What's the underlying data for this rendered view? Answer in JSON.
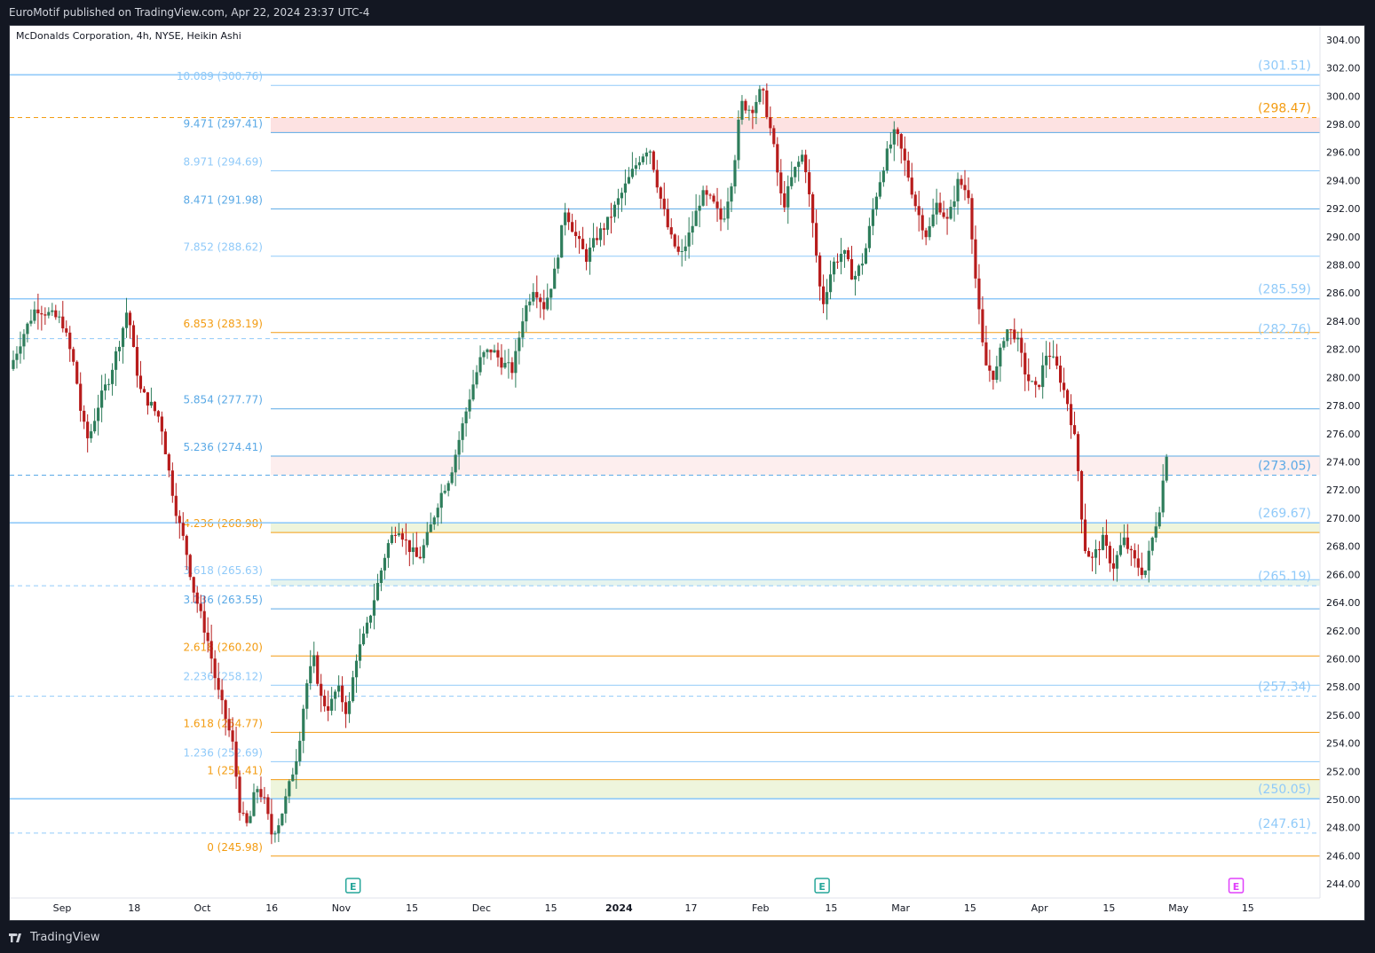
{
  "header": {
    "published_text": "EuroMotif published on TradingView.com, Apr 22, 2024 23:37 UTC-4"
  },
  "footer": {
    "brand": "TradingView",
    "logo_icon": "tradingview-logo-icon"
  },
  "colors": {
    "up": "#26a69a",
    "down": "#ef5350",
    "candle_up_body": "#2e7d5b",
    "candle_down_body": "#b71c1c",
    "fib_blue": "#5aa9e6",
    "fib_orange": "#f39c12",
    "fib_light": "#90caf9"
  },
  "chart_data": {
    "type": "candlestick",
    "title": "McDonalds Corporation, 4h, NYSE, Heikin Ashi",
    "y_ticks": [
      "304.00",
      "302.00",
      "300.00",
      "298.00",
      "296.00",
      "294.00",
      "292.00",
      "290.00",
      "288.00",
      "286.00",
      "284.00",
      "282.00",
      "280.00",
      "278.00",
      "276.00",
      "274.00",
      "272.00",
      "270.00",
      "268.00",
      "266.00",
      "264.00",
      "262.00",
      "260.00",
      "258.00",
      "256.00",
      "254.00",
      "252.00",
      "250.00",
      "248.00",
      "246.00",
      "244.00"
    ],
    "ylim": [
      243,
      305
    ],
    "x_ticks": [
      {
        "label": "Sep",
        "bold": false
      },
      {
        "label": "18",
        "bold": false
      },
      {
        "label": "Oct",
        "bold": false
      },
      {
        "label": "16",
        "bold": false
      },
      {
        "label": "Nov",
        "bold": false
      },
      {
        "label": "15",
        "bold": false
      },
      {
        "label": "Dec",
        "bold": false
      },
      {
        "label": "15",
        "bold": false
      },
      {
        "label": "2024",
        "bold": true
      },
      {
        "label": "17",
        "bold": false
      },
      {
        "label": "Feb",
        "bold": false
      },
      {
        "label": "15",
        "bold": false
      },
      {
        "label": "Mar",
        "bold": false
      },
      {
        "label": "15",
        "bold": false
      },
      {
        "label": "Apr",
        "bold": false
      },
      {
        "label": "15",
        "bold": false
      },
      {
        "label": "May",
        "bold": false
      },
      {
        "label": "15",
        "bold": false
      }
    ],
    "fib_levels": [
      {
        "label": "10.089 (300.76)",
        "value": 300.76,
        "color": "light"
      },
      {
        "label": "9.471 (297.41)",
        "value": 297.41,
        "color": "blue"
      },
      {
        "label": "8.971 (294.69)",
        "value": 294.69,
        "color": "light"
      },
      {
        "label": "8.471 (291.98)",
        "value": 291.98,
        "color": "blue"
      },
      {
        "label": "7.852 (288.62)",
        "value": 288.62,
        "color": "light"
      },
      {
        "label": "6.853 (283.19)",
        "value": 283.19,
        "color": "orange"
      },
      {
        "label": "5.854 (277.77)",
        "value": 277.77,
        "color": "blue"
      },
      {
        "label": "5.236 (274.41)",
        "value": 274.41,
        "color": "blue"
      },
      {
        "label": "4.236 (268.98)",
        "value": 268.98,
        "color": "orange"
      },
      {
        "label": "3.618 (265.63)",
        "value": 265.63,
        "color": "light"
      },
      {
        "label": "3.236 (263.55)",
        "value": 263.55,
        "color": "blue"
      },
      {
        "label": "2.618 (260.20)",
        "value": 260.2,
        "color": "orange"
      },
      {
        "label": "2.236 (258.12)",
        "value": 258.12,
        "color": "light"
      },
      {
        "label": "1.618 (254.77)",
        "value": 254.77,
        "color": "orange"
      },
      {
        "label": "1.236 (252.69)",
        "value": 252.69,
        "color": "light"
      },
      {
        "label": "1 (251.41)",
        "value": 251.41,
        "color": "orange"
      },
      {
        "label": "0 (245.98)",
        "value": 245.98,
        "color": "orange"
      }
    ],
    "sr_levels": [
      {
        "label": "(301.51)",
        "value": 301.51,
        "color": "light",
        "style": "solid"
      },
      {
        "label": "(298.47)",
        "value": 298.47,
        "color": "orange",
        "style": "dashed"
      },
      {
        "label": "(285.59)",
        "value": 285.59,
        "color": "light",
        "style": "solid"
      },
      {
        "label": "(282.76)",
        "value": 282.76,
        "color": "light",
        "style": "dashed"
      },
      {
        "label": "(273.05)",
        "value": 273.05,
        "color": "blue",
        "style": "dashed"
      },
      {
        "label": "(269.67)",
        "value": 269.67,
        "color": "light",
        "style": "solid"
      },
      {
        "label": "(265.19)",
        "value": 265.19,
        "color": "light",
        "style": "dashed"
      },
      {
        "label": "(257.34)",
        "value": 257.34,
        "color": "light",
        "style": "dashed"
      },
      {
        "label": "(250.05)",
        "value": 250.05,
        "color": "light",
        "style": "solid"
      },
      {
        "label": "(247.61)",
        "value": 247.61,
        "color": "light",
        "style": "dashed"
      }
    ],
    "zones": [
      {
        "low": 297.41,
        "high": 298.47,
        "color": "#fde2e2"
      },
      {
        "low": 273.05,
        "high": 274.41,
        "color": "#fdeeee"
      },
      {
        "low": 268.98,
        "high": 269.67,
        "color": "#eef5dc"
      },
      {
        "low": 265.19,
        "high": 265.63,
        "color": "#e6f4ee"
      },
      {
        "low": 250.05,
        "high": 251.41,
        "color": "#eef5dc"
      }
    ],
    "earnings_markers": [
      {
        "label": "E",
        "color": "#26a69a",
        "position": 0.262
      },
      {
        "label": "E",
        "color": "#26a69a",
        "position": 0.62
      },
      {
        "label": "E",
        "color": "#e040fb",
        "position": 0.936
      }
    ],
    "price_path": [
      {
        "t": 0.0,
        "v": 280.6
      },
      {
        "t": 0.01,
        "v": 283.0
      },
      {
        "t": 0.02,
        "v": 285.0
      },
      {
        "t": 0.03,
        "v": 284.5
      },
      {
        "t": 0.04,
        "v": 284.0
      },
      {
        "t": 0.05,
        "v": 280.5
      },
      {
        "t": 0.055,
        "v": 277.0
      },
      {
        "t": 0.06,
        "v": 275.5
      },
      {
        "t": 0.068,
        "v": 278.2
      },
      {
        "t": 0.076,
        "v": 280.0
      },
      {
        "t": 0.085,
        "v": 283.0
      },
      {
        "t": 0.09,
        "v": 285.0
      },
      {
        "t": 0.095,
        "v": 281.5
      },
      {
        "t": 0.1,
        "v": 279.0
      },
      {
        "t": 0.108,
        "v": 278.0
      },
      {
        "t": 0.115,
        "v": 277.0
      },
      {
        "t": 0.122,
        "v": 273.0
      },
      {
        "t": 0.128,
        "v": 270.0
      },
      {
        "t": 0.134,
        "v": 268.0
      },
      {
        "t": 0.14,
        "v": 265.0
      },
      {
        "t": 0.146,
        "v": 263.0
      },
      {
        "t": 0.152,
        "v": 261.0
      },
      {
        "t": 0.158,
        "v": 258.0
      },
      {
        "t": 0.164,
        "v": 256.0
      },
      {
        "t": 0.17,
        "v": 254.0
      },
      {
        "t": 0.176,
        "v": 249.0
      },
      {
        "t": 0.182,
        "v": 248.0
      },
      {
        "t": 0.188,
        "v": 251.0
      },
      {
        "t": 0.194,
        "v": 250.0
      },
      {
        "t": 0.2,
        "v": 247.5
      },
      {
        "t": 0.206,
        "v": 248.5
      },
      {
        "t": 0.212,
        "v": 250.5
      },
      {
        "t": 0.22,
        "v": 253.5
      },
      {
        "t": 0.226,
        "v": 258.0
      },
      {
        "t": 0.232,
        "v": 260.0
      },
      {
        "t": 0.238,
        "v": 257.0
      },
      {
        "t": 0.244,
        "v": 256.5
      },
      {
        "t": 0.25,
        "v": 258.0
      },
      {
        "t": 0.258,
        "v": 256.0
      },
      {
        "t": 0.264,
        "v": 260.0
      },
      {
        "t": 0.272,
        "v": 262.0
      },
      {
        "t": 0.28,
        "v": 265.0
      },
      {
        "t": 0.288,
        "v": 268.0
      },
      {
        "t": 0.296,
        "v": 269.5
      },
      {
        "t": 0.304,
        "v": 268.0
      },
      {
        "t": 0.312,
        "v": 267.0
      },
      {
        "t": 0.32,
        "v": 269.0
      },
      {
        "t": 0.328,
        "v": 271.5
      },
      {
        "t": 0.336,
        "v": 273.0
      },
      {
        "t": 0.344,
        "v": 276.0
      },
      {
        "t": 0.352,
        "v": 279.0
      },
      {
        "t": 0.36,
        "v": 281.5
      },
      {
        "t": 0.368,
        "v": 282.0
      },
      {
        "t": 0.376,
        "v": 281.0
      },
      {
        "t": 0.384,
        "v": 280.5
      },
      {
        "t": 0.392,
        "v": 284.5
      },
      {
        "t": 0.4,
        "v": 286.5
      },
      {
        "t": 0.408,
        "v": 285.0
      },
      {
        "t": 0.416,
        "v": 287.5
      },
      {
        "t": 0.424,
        "v": 292.0
      },
      {
        "t": 0.432,
        "v": 290.0
      },
      {
        "t": 0.44,
        "v": 288.5
      },
      {
        "t": 0.448,
        "v": 290.0
      },
      {
        "t": 0.456,
        "v": 291.0
      },
      {
        "t": 0.464,
        "v": 292.5
      },
      {
        "t": 0.472,
        "v": 294.0
      },
      {
        "t": 0.48,
        "v": 295.5
      },
      {
        "t": 0.488,
        "v": 296.5
      },
      {
        "t": 0.496,
        "v": 293.0
      },
      {
        "t": 0.504,
        "v": 290.0
      },
      {
        "t": 0.512,
        "v": 288.5
      },
      {
        "t": 0.52,
        "v": 290.5
      },
      {
        "t": 0.528,
        "v": 293.0
      },
      {
        "t": 0.536,
        "v": 292.5
      },
      {
        "t": 0.544,
        "v": 291.0
      },
      {
        "t": 0.552,
        "v": 294.5
      },
      {
        "t": 0.558,
        "v": 299.5
      },
      {
        "t": 0.566,
        "v": 299.0
      },
      {
        "t": 0.574,
        "v": 300.5
      },
      {
        "t": 0.582,
        "v": 297.0
      },
      {
        "t": 0.59,
        "v": 292.0
      },
      {
        "t": 0.598,
        "v": 294.5
      },
      {
        "t": 0.606,
        "v": 296.0
      },
      {
        "t": 0.614,
        "v": 290.0
      },
      {
        "t": 0.62,
        "v": 285.0
      },
      {
        "t": 0.628,
        "v": 288.0
      },
      {
        "t": 0.636,
        "v": 289.0
      },
      {
        "t": 0.644,
        "v": 287.0
      },
      {
        "t": 0.652,
        "v": 288.5
      },
      {
        "t": 0.66,
        "v": 292.5
      },
      {
        "t": 0.668,
        "v": 295.5
      },
      {
        "t": 0.676,
        "v": 297.5
      },
      {
        "t": 0.684,
        "v": 295.0
      },
      {
        "t": 0.692,
        "v": 292.0
      },
      {
        "t": 0.7,
        "v": 290.0
      },
      {
        "t": 0.708,
        "v": 292.5
      },
      {
        "t": 0.716,
        "v": 291.0
      },
      {
        "t": 0.724,
        "v": 294.0
      },
      {
        "t": 0.732,
        "v": 293.0
      },
      {
        "t": 0.738,
        "v": 286.0
      },
      {
        "t": 0.744,
        "v": 281.0
      },
      {
        "t": 0.752,
        "v": 280.0
      },
      {
        "t": 0.76,
        "v": 283.5
      },
      {
        "t": 0.768,
        "v": 283.0
      },
      {
        "t": 0.776,
        "v": 280.0
      },
      {
        "t": 0.784,
        "v": 279.0
      },
      {
        "t": 0.792,
        "v": 282.0
      },
      {
        "t": 0.8,
        "v": 280.5
      },
      {
        "t": 0.808,
        "v": 278.0
      },
      {
        "t": 0.814,
        "v": 275.0
      },
      {
        "t": 0.82,
        "v": 268.0
      },
      {
        "t": 0.826,
        "v": 267.0
      },
      {
        "t": 0.834,
        "v": 268.5
      },
      {
        "t": 0.842,
        "v": 266.5
      },
      {
        "t": 0.85,
        "v": 268.5
      },
      {
        "t": 0.858,
        "v": 267.0
      },
      {
        "t": 0.866,
        "v": 266.0
      },
      {
        "t": 0.872,
        "v": 268.5
      },
      {
        "t": 0.878,
        "v": 271.0
      },
      {
        "t": 0.884,
        "v": 275.5
      }
    ]
  }
}
